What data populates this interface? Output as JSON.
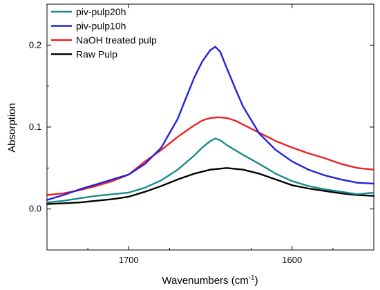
{
  "chart_data": {
    "type": "line",
    "title": "",
    "xlabel": "Wavenumbers (cm",
    "xlabel_sup": "-1",
    "xlabel_close": ")",
    "ylabel": "Absorption",
    "xlim": [
      1750,
      1550
    ],
    "ylim": [
      -0.05,
      0.25
    ],
    "x_reversed": true,
    "xticks": [
      1700,
      1600
    ],
    "xtick_labels": [
      "1700",
      "1600"
    ],
    "yticks": [
      0.0,
      0.1,
      0.2
    ],
    "ytick_labels": [
      "0.0",
      "0.1",
      "0.2"
    ],
    "grid": false,
    "legend_position": "top-left",
    "series": [
      {
        "name": "piv-pulp20h",
        "color": "#1a8a8a",
        "x": [
          1750,
          1740,
          1730,
          1720,
          1710,
          1700,
          1690,
          1680,
          1670,
          1660,
          1655,
          1650,
          1647,
          1644,
          1640,
          1635,
          1630,
          1620,
          1610,
          1600,
          1590,
          1580,
          1570,
          1560,
          1550
        ],
        "y": [
          0.008,
          0.01,
          0.013,
          0.016,
          0.018,
          0.02,
          0.026,
          0.035,
          0.048,
          0.065,
          0.075,
          0.083,
          0.086,
          0.084,
          0.078,
          0.072,
          0.066,
          0.055,
          0.043,
          0.034,
          0.028,
          0.024,
          0.021,
          0.018,
          0.02
        ]
      },
      {
        "name": "piv-pulp10h",
        "color": "#2020e0",
        "x": [
          1750,
          1740,
          1730,
          1720,
          1710,
          1700,
          1690,
          1680,
          1670,
          1665,
          1660,
          1655,
          1650,
          1647,
          1644,
          1640,
          1635,
          1630,
          1620,
          1610,
          1600,
          1590,
          1580,
          1570,
          1560,
          1550
        ],
        "y": [
          0.011,
          0.017,
          0.024,
          0.03,
          0.036,
          0.042,
          0.055,
          0.075,
          0.11,
          0.135,
          0.16,
          0.18,
          0.194,
          0.198,
          0.192,
          0.172,
          0.148,
          0.125,
          0.092,
          0.072,
          0.058,
          0.048,
          0.041,
          0.036,
          0.032,
          0.031
        ]
      },
      {
        "name": "NaOH treated pulp",
        "color": "#ee2020",
        "x": [
          1750,
          1740,
          1730,
          1720,
          1710,
          1700,
          1690,
          1680,
          1670,
          1660,
          1655,
          1650,
          1645,
          1640,
          1635,
          1630,
          1620,
          1610,
          1600,
          1590,
          1580,
          1570,
          1560,
          1550
        ],
        "y": [
          0.017,
          0.019,
          0.023,
          0.028,
          0.034,
          0.042,
          0.058,
          0.072,
          0.088,
          0.102,
          0.108,
          0.111,
          0.112,
          0.111,
          0.108,
          0.103,
          0.093,
          0.083,
          0.075,
          0.068,
          0.062,
          0.055,
          0.05,
          0.048
        ]
      },
      {
        "name": "Raw Pulp",
        "color": "#000000",
        "x": [
          1750,
          1740,
          1730,
          1720,
          1710,
          1700,
          1690,
          1680,
          1670,
          1660,
          1650,
          1640,
          1630,
          1620,
          1610,
          1600,
          1590,
          1580,
          1570,
          1560,
          1550
        ],
        "y": [
          0.006,
          0.007,
          0.008,
          0.01,
          0.012,
          0.015,
          0.021,
          0.028,
          0.036,
          0.043,
          0.048,
          0.05,
          0.048,
          0.043,
          0.036,
          0.029,
          0.025,
          0.022,
          0.019,
          0.017,
          0.016
        ]
      }
    ]
  }
}
